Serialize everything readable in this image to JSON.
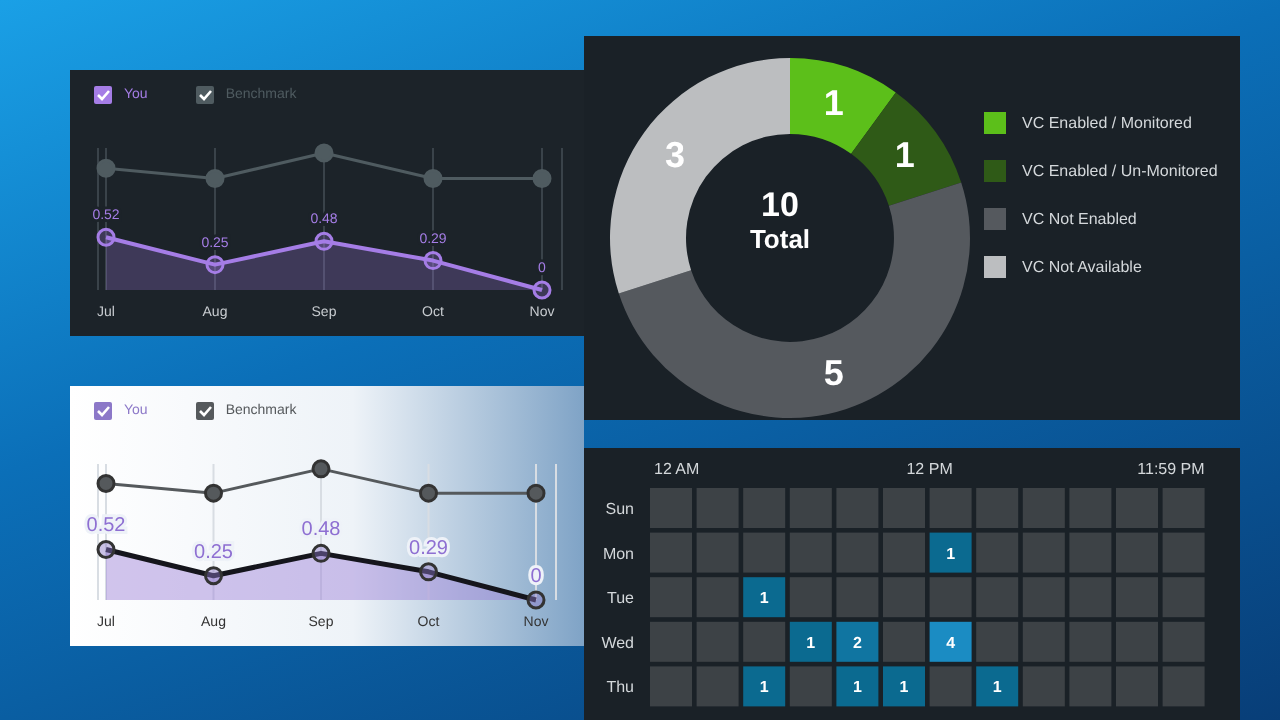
{
  "chart_data": [
    {
      "type": "line",
      "categories": [
        "Jul",
        "Aug",
        "Sep",
        "Oct",
        "Nov"
      ],
      "series": [
        {
          "name": "You",
          "type": "area",
          "color": "#a57de6",
          "values": [
            0.52,
            0.25,
            0.48,
            0.29,
            0
          ],
          "value_labels": [
            "0.52",
            "0.25",
            "0.48",
            "0.29",
            "0"
          ]
        },
        {
          "name": "Benchmark",
          "type": "line",
          "color": "#4f5b60",
          "values": [
            1.2,
            1.1,
            1.35,
            1.1,
            1.1
          ]
        }
      ],
      "legend": "top left",
      "grid": "x",
      "marker": "circle",
      "tick_labels": "x"
    },
    {
      "type": "line",
      "categories": [
        "Jul",
        "Aug",
        "Sep",
        "Oct",
        "Nov"
      ],
      "series": [
        {
          "name": "You",
          "type": "area",
          "color": "#15151c",
          "values": [
            0.52,
            0.25,
            0.48,
            0.29,
            0
          ],
          "value_labels": [
            "0.52",
            "0.25",
            "0.48",
            "0.29",
            "0"
          ]
        },
        {
          "name": "Benchmark",
          "type": "line",
          "color": "#55595c",
          "values": [
            1.2,
            1.1,
            1.35,
            1.1,
            1.1
          ]
        }
      ],
      "legend": "top left",
      "grid": "x",
      "marker": "circle",
      "tick_labels": "x"
    },
    {
      "type": "donut",
      "categories": [
        "VC Enabled / Monitored",
        "VC Enabled / Un-Monitored",
        "VC Not Enabled",
        "VC Not Available"
      ],
      "values": [
        1,
        1,
        5,
        3
      ],
      "colors": [
        "#5cbf1a",
        "#2f5a17",
        "#55595e",
        "#bcbec0"
      ],
      "data_labels": true,
      "legend": "right",
      "annotations": [
        "10",
        "Total"
      ]
    },
    {
      "type": "heatmap",
      "categories": [
        "12 AM",
        null,
        null,
        null,
        null,
        null,
        "12 PM",
        null,
        null,
        null,
        null,
        "11:59 PM"
      ],
      "y_categories": [
        "Sun",
        "Mon",
        "Tue",
        "Wed",
        "Thu"
      ],
      "cells": [
        [
          null,
          null,
          null,
          null,
          null,
          null,
          null,
          null,
          null,
          null,
          null,
          null
        ],
        [
          null,
          null,
          null,
          null,
          null,
          null,
          1,
          null,
          null,
          null,
          null,
          null
        ],
        [
          null,
          null,
          1,
          null,
          null,
          null,
          null,
          null,
          null,
          null,
          null,
          null
        ],
        [
          null,
          null,
          null,
          1,
          2,
          null,
          4,
          null,
          null,
          null,
          null,
          null
        ],
        [
          null,
          null,
          1,
          null,
          1,
          1,
          null,
          1,
          null,
          null,
          null,
          null
        ]
      ],
      "colors": [
        "#0b6a90",
        "#1b8cc3"
      ],
      "data_labels": true
    }
  ]
}
